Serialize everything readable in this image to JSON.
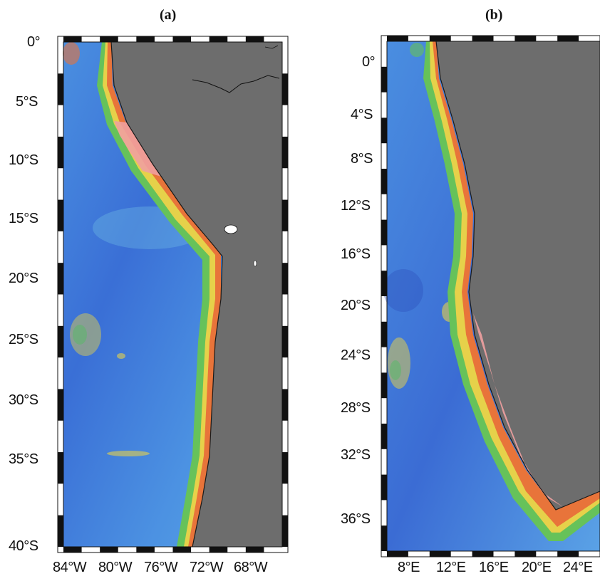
{
  "panels": [
    {
      "id": "a",
      "label": "(a)",
      "lat_ticks": [
        "0°",
        "5°S",
        "10°S",
        "15°S",
        "20°S",
        "25°S",
        "30°S",
        "35°S",
        "40°S"
      ],
      "lon_ticks": [
        "84°W",
        "80°W",
        "76°W",
        "72°W",
        "68°W"
      ]
    },
    {
      "id": "b",
      "label": "(b)",
      "lat_ticks": [
        "0°",
        "4°S",
        "8°S",
        "12°S",
        "16°S",
        "20°S",
        "24°S",
        "28°S",
        "32°S",
        "36°S"
      ],
      "lon_ticks": [
        "8°E",
        "12°E",
        "16°E",
        "20°E",
        "24°E"
      ]
    }
  ],
  "colors": {
    "land": "#6d6d6d",
    "deep_ocean": "#2f57c8",
    "mid_ocean": "#4a8fe0",
    "shallow": "#7fd0e8",
    "shelf_green": "#66c25a",
    "shelf_yellow": "#e6d14a",
    "shelf_orange": "#e8743a",
    "shelf_pink": "#f0a0a0",
    "coast": "#1a1a1a"
  }
}
